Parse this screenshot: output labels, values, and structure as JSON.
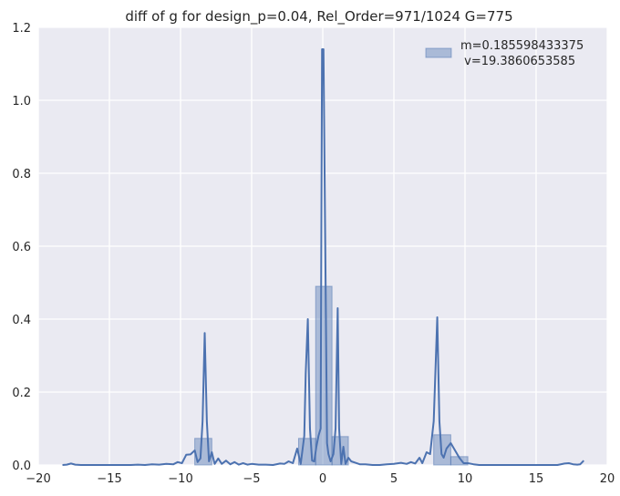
{
  "chart_data": {
    "type": "bar",
    "title": "diff of g for design_p=0.04, Rel_Order=971/1024 G=775",
    "xlabel": "",
    "ylabel": "",
    "xlim": [
      -20,
      20
    ],
    "ylim": [
      0,
      1.2
    ],
    "xticks": [
      -20,
      -15,
      -10,
      -5,
      0,
      5,
      10,
      15,
      20
    ],
    "xtick_labels": [
      "−20",
      "−15",
      "−10",
      "−5",
      "0",
      "5",
      "10",
      "15",
      "20"
    ],
    "yticks": [
      0.0,
      0.2,
      0.4,
      0.6,
      0.8,
      1.0,
      1.2
    ],
    "ytick_labels": [
      "0.0",
      "0.2",
      "0.4",
      "0.6",
      "0.8",
      "1.0",
      "1.2"
    ],
    "grid": true,
    "legend": {
      "placement": "top-right",
      "entries": [
        {
          "label_line1": "m=0.185598433375",
          "label_line2": " v=19.3860653585"
        }
      ]
    },
    "colors": {
      "bars": "#4c72b0",
      "line": "#4c72b0",
      "background": "#eaeaf2",
      "grid": "#ffffff"
    },
    "histogram": {
      "bins": [
        {
          "x0": -9.0,
          "x1": -7.8,
          "value": 0.073
        },
        {
          "x0": -1.7,
          "x1": -0.5,
          "value": 0.073
        },
        {
          "x0": -0.5,
          "x1": 0.65,
          "value": 0.49
        },
        {
          "x0": 0.65,
          "x1": 1.8,
          "value": 0.078
        },
        {
          "x0": 7.8,
          "x1": 9.0,
          "value": 0.083
        },
        {
          "x0": 9.0,
          "x1": 10.2,
          "value": 0.023
        }
      ]
    },
    "kde": {
      "x": [
        -18.3,
        -18.0,
        -17.7,
        -17.4,
        -17.0,
        -16.5,
        -16.0,
        -15.5,
        -15.0,
        -14.5,
        -14.0,
        -13.5,
        -13.0,
        -12.5,
        -12.0,
        -11.5,
        -11.0,
        -10.5,
        -10.2,
        -9.9,
        -9.6,
        -9.3,
        -9.0,
        -8.8,
        -8.6,
        -8.45,
        -8.3,
        -8.15,
        -8.0,
        -7.8,
        -7.6,
        -7.35,
        -7.1,
        -6.8,
        -6.5,
        -6.2,
        -5.9,
        -5.6,
        -5.3,
        -5.0,
        -4.5,
        -4.0,
        -3.5,
        -3.0,
        -2.7,
        -2.4,
        -2.1,
        -1.8,
        -1.55,
        -1.3,
        -1.2,
        -1.05,
        -0.9,
        -0.75,
        -0.6,
        -0.45,
        -0.3,
        -0.15,
        -0.05,
        0.05,
        0.2,
        0.3,
        0.4,
        0.55,
        0.75,
        0.9,
        1.05,
        1.15,
        1.3,
        1.45,
        1.6,
        1.8,
        2.0,
        2.3,
        2.6,
        3.0,
        3.5,
        4.0,
        4.5,
        5.0,
        5.5,
        5.9,
        6.2,
        6.5,
        6.8,
        7.0,
        7.3,
        7.55,
        7.8,
        8.05,
        8.2,
        8.35,
        8.5,
        8.7,
        9.0,
        9.3,
        9.6,
        9.9,
        10.2,
        10.6,
        11.0,
        11.5,
        12.0,
        12.5,
        13.0,
        13.5,
        14.0,
        14.5,
        15.0,
        15.5,
        16.0,
        16.5,
        17.0,
        17.3,
        17.6,
        17.9,
        18.1,
        18.35
      ],
      "y": [
        0.0,
        0.001,
        0.004,
        0.001,
        0.0,
        0.0,
        0.0,
        0.0,
        0.0,
        0.0,
        0.0,
        0.0,
        0.001,
        0.0,
        0.002,
        0.001,
        0.003,
        0.002,
        0.008,
        0.005,
        0.028,
        0.029,
        0.04,
        0.008,
        0.018,
        0.12,
        0.362,
        0.12,
        0.01,
        0.035,
        0.003,
        0.018,
        0.003,
        0.012,
        0.002,
        0.008,
        0.001,
        0.005,
        0.001,
        0.003,
        0.001,
        0.001,
        0.0,
        0.004,
        0.003,
        0.01,
        0.005,
        0.045,
        0.003,
        0.08,
        0.25,
        0.4,
        0.1,
        0.012,
        0.01,
        0.05,
        0.08,
        0.1,
        1.14,
        1.14,
        0.5,
        0.06,
        0.03,
        0.01,
        0.03,
        0.1,
        0.43,
        0.1,
        0.003,
        0.05,
        0.003,
        0.02,
        0.01,
        0.006,
        0.002,
        0.002,
        0.0,
        0.0,
        0.002,
        0.003,
        0.006,
        0.003,
        0.008,
        0.004,
        0.02,
        0.005,
        0.035,
        0.03,
        0.12,
        0.405,
        0.12,
        0.03,
        0.02,
        0.045,
        0.06,
        0.04,
        0.02,
        0.005,
        0.005,
        0.002,
        0.0,
        0.0,
        0.0,
        0.0,
        0.0,
        0.0,
        0.0,
        0.0,
        0.0,
        0.0,
        0.0,
        0.0,
        0.004,
        0.005,
        0.002,
        0.001,
        0.002,
        0.012
      ]
    }
  }
}
